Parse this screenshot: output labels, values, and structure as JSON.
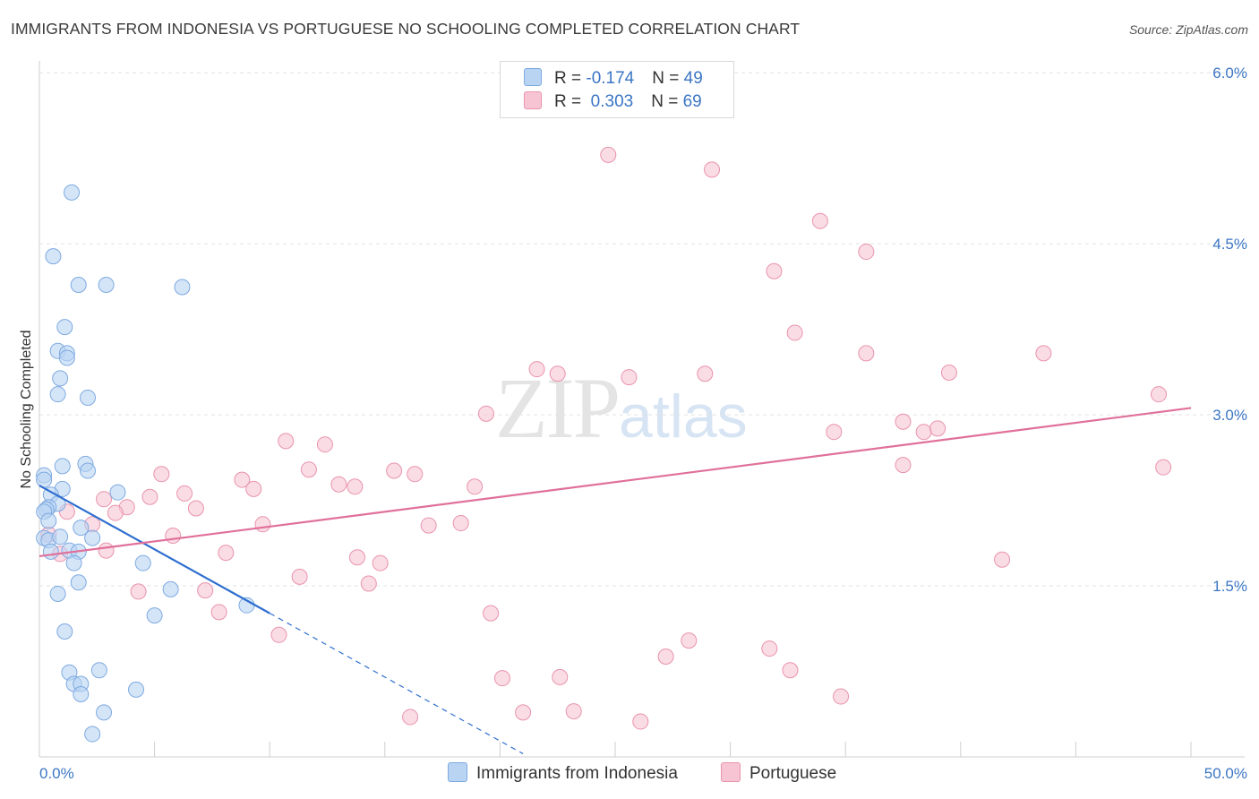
{
  "header": {
    "title": "IMMIGRANTS FROM INDONESIA VS PORTUGUESE NO SCHOOLING COMPLETED CORRELATION CHART",
    "source": "Source: ZipAtlas.com"
  },
  "watermark": {
    "zip": "ZIP",
    "atlas": "atlas"
  },
  "legend": {
    "rows": [
      {
        "r_label": "R = ",
        "r_value": "-0.174",
        "n_label": "N = ",
        "n_value": "49"
      },
      {
        "r_label": "R = ",
        "r_value": " 0.303",
        "n_label": "N = ",
        "n_value": "69"
      }
    ]
  },
  "bottom_legend": {
    "series1": "Immigrants from Indonesia",
    "series2": "Portuguese"
  },
  "colors": {
    "blue_fill": "#b9d3f3",
    "blue_stroke": "#7eaae0",
    "blue_line": "#2f6fcf",
    "pink_fill": "#f7c4d3",
    "pink_stroke": "#e993ad",
    "pink_line": "#e0709a",
    "axis_text": "#3b76c4",
    "grid": "#e2e2e2"
  },
  "chart_data": {
    "type": "scatter",
    "title": "IMMIGRANTS FROM INDONESIA VS PORTUGUESE NO SCHOOLING COMPLETED CORRELATION CHART",
    "xlabel": "",
    "ylabel": "No Schooling Completed",
    "xlim": [
      0,
      50
    ],
    "ylim": [
      0,
      6.3
    ],
    "x_ticks": [
      "0.0%",
      "50.0%"
    ],
    "y_ticks": [
      {
        "value": 1.5,
        "label": "1.5%"
      },
      {
        "value": 3.0,
        "label": "3.0%"
      },
      {
        "value": 4.5,
        "label": "4.5%"
      },
      {
        "value": 6.0,
        "label": "6.0%"
      }
    ],
    "series": [
      {
        "name": "Immigrants from Indonesia",
        "color": "blue",
        "R": -0.174,
        "N": 49,
        "trend": {
          "x0": 0.0,
          "y0": 2.38,
          "x1": 10.0,
          "y1": 1.26,
          "dash_to_x": 21.0
        },
        "points": [
          [
            1.4,
            4.95
          ],
          [
            0.6,
            4.39
          ],
          [
            1.7,
            4.14
          ],
          [
            2.9,
            4.14
          ],
          [
            6.2,
            4.12
          ],
          [
            1.1,
            3.77
          ],
          [
            0.8,
            3.56
          ],
          [
            1.2,
            3.54
          ],
          [
            1.2,
            3.5
          ],
          [
            0.9,
            3.32
          ],
          [
            0.8,
            3.18
          ],
          [
            2.1,
            3.15
          ],
          [
            2.0,
            2.57
          ],
          [
            1.0,
            2.55
          ],
          [
            2.1,
            2.51
          ],
          [
            0.2,
            2.47
          ],
          [
            0.2,
            2.43
          ],
          [
            1.0,
            2.35
          ],
          [
            0.5,
            2.3
          ],
          [
            3.4,
            2.32
          ],
          [
            0.8,
            2.22
          ],
          [
            0.4,
            2.19
          ],
          [
            0.3,
            2.17
          ],
          [
            0.2,
            2.15
          ],
          [
            0.4,
            2.07
          ],
          [
            1.8,
            2.01
          ],
          [
            0.2,
            1.92
          ],
          [
            0.4,
            1.9
          ],
          [
            0.9,
            1.93
          ],
          [
            2.3,
            1.92
          ],
          [
            0.5,
            1.8
          ],
          [
            1.3,
            1.81
          ],
          [
            1.7,
            1.8
          ],
          [
            1.5,
            1.7
          ],
          [
            4.5,
            1.7
          ],
          [
            1.7,
            1.53
          ],
          [
            0.8,
            1.43
          ],
          [
            5.7,
            1.47
          ],
          [
            9.0,
            1.33
          ],
          [
            5.0,
            1.24
          ],
          [
            1.1,
            1.1
          ],
          [
            1.3,
            0.74
          ],
          [
            2.6,
            0.76
          ],
          [
            1.5,
            0.64
          ],
          [
            1.8,
            0.64
          ],
          [
            4.2,
            0.59
          ],
          [
            1.8,
            0.55
          ],
          [
            2.8,
            0.39
          ],
          [
            2.3,
            0.2
          ]
        ]
      },
      {
        "name": "Portuguese",
        "color": "pink",
        "R": 0.303,
        "N": 69,
        "trend": {
          "x0": 0.0,
          "y0": 1.76,
          "x1": 50.0,
          "y1": 3.06
        },
        "points": [
          [
            24.7,
            5.28
          ],
          [
            29.2,
            5.15
          ],
          [
            33.9,
            4.7
          ],
          [
            35.9,
            4.43
          ],
          [
            31.9,
            4.26
          ],
          [
            32.8,
            3.72
          ],
          [
            35.9,
            3.54
          ],
          [
            43.6,
            3.54
          ],
          [
            21.6,
            3.4
          ],
          [
            22.5,
            3.36
          ],
          [
            25.6,
            3.33
          ],
          [
            28.9,
            3.36
          ],
          [
            39.5,
            3.37
          ],
          [
            48.6,
            3.18
          ],
          [
            19.4,
            3.01
          ],
          [
            37.5,
            2.94
          ],
          [
            34.5,
            2.85
          ],
          [
            38.4,
            2.85
          ],
          [
            39.0,
            2.88
          ],
          [
            10.7,
            2.77
          ],
          [
            12.4,
            2.74
          ],
          [
            11.7,
            2.52
          ],
          [
            15.4,
            2.51
          ],
          [
            16.3,
            2.48
          ],
          [
            5.3,
            2.48
          ],
          [
            8.8,
            2.43
          ],
          [
            9.3,
            2.35
          ],
          [
            13.0,
            2.39
          ],
          [
            13.7,
            2.37
          ],
          [
            18.9,
            2.37
          ],
          [
            6.3,
            2.31
          ],
          [
            4.8,
            2.28
          ],
          [
            2.8,
            2.26
          ],
          [
            3.8,
            2.19
          ],
          [
            6.8,
            2.18
          ],
          [
            3.3,
            2.14
          ],
          [
            1.2,
            2.15
          ],
          [
            2.3,
            2.04
          ],
          [
            9.7,
            2.04
          ],
          [
            18.3,
            2.05
          ],
          [
            16.9,
            2.03
          ],
          [
            5.8,
            1.94
          ],
          [
            37.5,
            2.56
          ],
          [
            48.8,
            2.54
          ],
          [
            0.4,
            1.95
          ],
          [
            0.9,
            1.78
          ],
          [
            2.9,
            1.81
          ],
          [
            8.1,
            1.79
          ],
          [
            13.8,
            1.75
          ],
          [
            14.8,
            1.7
          ],
          [
            41.8,
            1.73
          ],
          [
            11.3,
            1.58
          ],
          [
            14.3,
            1.52
          ],
          [
            4.3,
            1.45
          ],
          [
            7.2,
            1.46
          ],
          [
            19.6,
            1.26
          ],
          [
            7.8,
            1.27
          ],
          [
            10.4,
            1.07
          ],
          [
            28.2,
            1.02
          ],
          [
            31.7,
            0.95
          ],
          [
            27.2,
            0.88
          ],
          [
            32.6,
            0.76
          ],
          [
            20.1,
            0.69
          ],
          [
            22.6,
            0.7
          ],
          [
            34.8,
            0.53
          ],
          [
            21.0,
            0.39
          ],
          [
            23.2,
            0.4
          ],
          [
            16.1,
            0.35
          ],
          [
            26.1,
            0.31
          ]
        ]
      }
    ]
  }
}
